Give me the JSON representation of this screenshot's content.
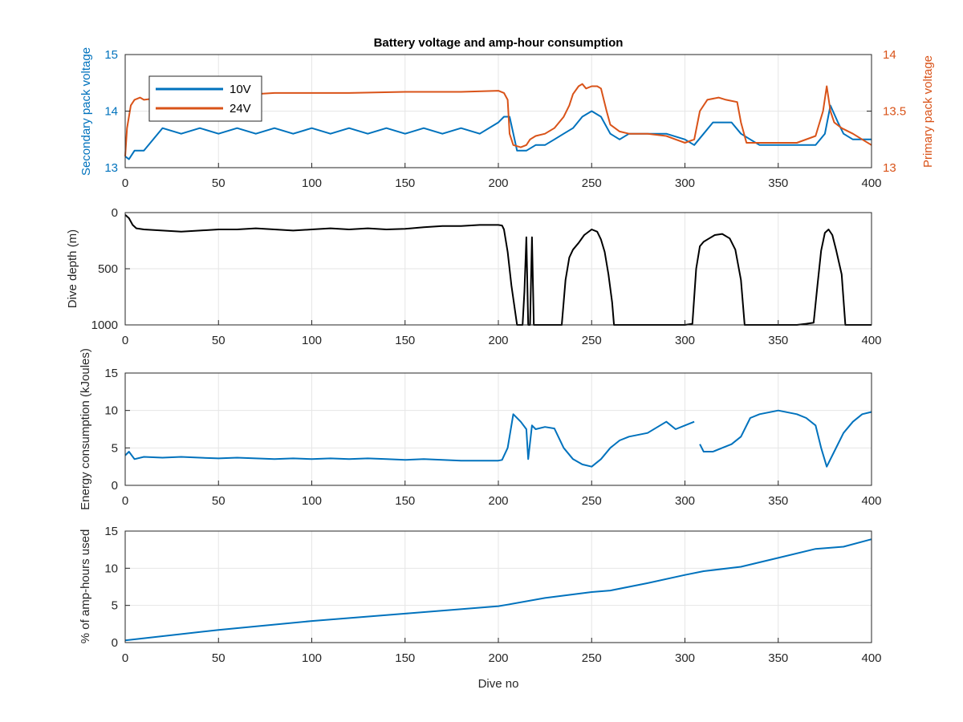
{
  "chart_data": [
    {
      "type": "line",
      "title": "Battery voltage and amp-hour consumption",
      "xlabel": "",
      "ylabel": "Secondary pack voltage",
      "ylabel_right": "Primary pack voltage",
      "xlim": [
        0,
        400
      ],
      "ylim": [
        13,
        15
      ],
      "ylim_right": [
        13,
        14
      ],
      "xticks": [
        0,
        50,
        100,
        150,
        200,
        250,
        300,
        350,
        400
      ],
      "yticks": [
        13,
        14,
        15
      ],
      "yticks_right": [
        13,
        13.5,
        14
      ],
      "grid": true,
      "legend": "top-left",
      "series": [
        {
          "name": "10V",
          "axis": "left",
          "color": "#0072BD",
          "x": [
            0,
            2,
            5,
            10,
            20,
            30,
            40,
            50,
            60,
            70,
            80,
            90,
            100,
            110,
            120,
            130,
            140,
            150,
            160,
            170,
            180,
            190,
            200,
            203,
            206,
            210,
            215,
            220,
            225,
            230,
            235,
            240,
            245,
            250,
            255,
            260,
            265,
            270,
            280,
            290,
            300,
            305,
            310,
            315,
            320,
            325,
            330,
            335,
            340,
            350,
            360,
            370,
            375,
            378,
            382,
            385,
            390,
            400
          ],
          "y": [
            13.2,
            13.15,
            13.3,
            13.3,
            13.7,
            13.6,
            13.7,
            13.6,
            13.7,
            13.6,
            13.7,
            13.6,
            13.7,
            13.6,
            13.7,
            13.6,
            13.7,
            13.6,
            13.7,
            13.6,
            13.7,
            13.6,
            13.8,
            13.9,
            13.9,
            13.3,
            13.3,
            13.4,
            13.4,
            13.5,
            13.6,
            13.7,
            13.9,
            14.0,
            13.9,
            13.6,
            13.5,
            13.6,
            13.6,
            13.6,
            13.5,
            13.4,
            13.6,
            13.8,
            13.8,
            13.8,
            13.6,
            13.5,
            13.4,
            13.4,
            13.4,
            13.4,
            13.6,
            14.1,
            13.8,
            13.6,
            13.5,
            13.5
          ]
        },
        {
          "name": "24V",
          "axis": "right",
          "color": "#D95319",
          "x": [
            0,
            1,
            3,
            5,
            8,
            10,
            20,
            30,
            40,
            50,
            60,
            70,
            80,
            100,
            120,
            150,
            180,
            200,
            203,
            205,
            206,
            208,
            212,
            215,
            217,
            220,
            225,
            230,
            235,
            238,
            240,
            243,
            245,
            247,
            250,
            253,
            255,
            258,
            260,
            265,
            270,
            280,
            290,
            295,
            300,
            305,
            308,
            312,
            318,
            322,
            328,
            330,
            333,
            340,
            350,
            360,
            370,
            374,
            376,
            378,
            380,
            384,
            390,
            395,
            400
          ],
          "y": [
            13.1,
            13.35,
            13.55,
            13.6,
            13.62,
            13.6,
            13.62,
            13.63,
            13.63,
            13.64,
            13.65,
            13.65,
            13.66,
            13.66,
            13.66,
            13.67,
            13.67,
            13.68,
            13.66,
            13.6,
            13.3,
            13.2,
            13.18,
            13.2,
            13.25,
            13.28,
            13.3,
            13.35,
            13.45,
            13.55,
            13.65,
            13.72,
            13.74,
            13.7,
            13.72,
            13.72,
            13.7,
            13.5,
            13.38,
            13.32,
            13.3,
            13.3,
            13.28,
            13.25,
            13.22,
            13.25,
            13.5,
            13.6,
            13.62,
            13.6,
            13.58,
            13.4,
            13.22,
            13.22,
            13.22,
            13.22,
            13.28,
            13.5,
            13.72,
            13.5,
            13.4,
            13.35,
            13.3,
            13.25,
            13.2
          ]
        }
      ]
    },
    {
      "type": "line",
      "title": "",
      "xlabel": "",
      "ylabel": "Dive depth (m)",
      "y_reversed": true,
      "xlim": [
        0,
        400
      ],
      "ylim": [
        0,
        1000
      ],
      "xticks": [
        0,
        50,
        100,
        150,
        200,
        250,
        300,
        350,
        400
      ],
      "yticks": [
        0,
        500,
        1000
      ],
      "grid": true,
      "series": [
        {
          "color": "#000000",
          "x": [
            0,
            2,
            4,
            6,
            10,
            20,
            30,
            40,
            50,
            60,
            70,
            80,
            90,
            100,
            110,
            120,
            130,
            140,
            150,
            160,
            170,
            180,
            190,
            200,
            202,
            203,
            205,
            207,
            210,
            213,
            214,
            215,
            216,
            217,
            218,
            219,
            220,
            225,
            230,
            234,
            236,
            238,
            240,
            243,
            246,
            250,
            253,
            255,
            257,
            259,
            261,
            262,
            270,
            290,
            300,
            304,
            306,
            308,
            310,
            313,
            316,
            320,
            324,
            327,
            330,
            332,
            334,
            340,
            350,
            360,
            365,
            369,
            371,
            373,
            375,
            377,
            379,
            381,
            384,
            386,
            390,
            400
          ],
          "y": [
            20,
            50,
            110,
            140,
            150,
            160,
            170,
            160,
            150,
            150,
            140,
            150,
            160,
            150,
            140,
            150,
            140,
            150,
            145,
            130,
            120,
            120,
            110,
            110,
            115,
            150,
            350,
            650,
            1000,
            1000,
            700,
            220,
            1000,
            1000,
            220,
            1000,
            1000,
            1000,
            1000,
            1000,
            600,
            400,
            330,
            270,
            200,
            150,
            170,
            240,
            350,
            550,
            800,
            1000,
            1000,
            1000,
            1000,
            990,
            500,
            300,
            260,
            230,
            200,
            190,
            230,
            330,
            600,
            1000,
            1000,
            1000,
            1000,
            1000,
            990,
            980,
            650,
            340,
            180,
            150,
            200,
            330,
            550,
            1000,
            1000,
            1000
          ]
        }
      ]
    },
    {
      "type": "line",
      "title": "",
      "xlabel": "",
      "ylabel": "Energy consumption (kJoules)",
      "xlim": [
        0,
        400
      ],
      "ylim": [
        0,
        15
      ],
      "xticks": [
        0,
        50,
        100,
        150,
        200,
        250,
        300,
        350,
        400
      ],
      "yticks": [
        0,
        5,
        10,
        15
      ],
      "grid": true,
      "series": [
        {
          "color": "#0072BD",
          "x": [
            0,
            2,
            5,
            10,
            20,
            30,
            40,
            50,
            60,
            70,
            80,
            90,
            100,
            110,
            120,
            130,
            140,
            150,
            160,
            170,
            180,
            190,
            200,
            202,
            205,
            208,
            212,
            215,
            216,
            218,
            220,
            225,
            230,
            235,
            240,
            245,
            250,
            255,
            260,
            265,
            270,
            280,
            290,
            295,
            300,
            305,
            null,
            308,
            310,
            315,
            320,
            325,
            330,
            335,
            340,
            350,
            360,
            365,
            370,
            373,
            376,
            380,
            385,
            390,
            395,
            400
          ],
          "y": [
            4.0,
            4.5,
            3.5,
            3.8,
            3.7,
            3.8,
            3.7,
            3.6,
            3.7,
            3.6,
            3.5,
            3.6,
            3.5,
            3.6,
            3.5,
            3.6,
            3.5,
            3.4,
            3.5,
            3.4,
            3.3,
            3.3,
            3.3,
            3.4,
            5.0,
            9.5,
            8.5,
            7.5,
            3.5,
            8.0,
            7.5,
            7.8,
            7.6,
            5.0,
            3.5,
            2.8,
            2.5,
            3.5,
            5.0,
            6.0,
            6.5,
            7.0,
            8.5,
            7.5,
            8.0,
            8.5,
            null,
            5.5,
            4.5,
            4.5,
            5.0,
            5.5,
            6.5,
            9.0,
            9.5,
            10.0,
            9.5,
            9.0,
            8.0,
            5.0,
            2.5,
            4.5,
            7.0,
            8.5,
            9.5,
            9.8
          ]
        }
      ]
    },
    {
      "type": "line",
      "title": "",
      "xlabel": "Dive no",
      "ylabel": "% of amp-hours used",
      "xlim": [
        0,
        400
      ],
      "ylim": [
        0,
        15
      ],
      "xticks": [
        0,
        50,
        100,
        150,
        200,
        250,
        300,
        350,
        400
      ],
      "yticks": [
        0,
        5,
        10,
        15
      ],
      "grid": true,
      "series": [
        {
          "color": "#0072BD",
          "x": [
            0,
            50,
            100,
            150,
            200,
            205,
            225,
            250,
            260,
            280,
            300,
            310,
            330,
            350,
            370,
            385,
            400
          ],
          "y": [
            0.3,
            1.7,
            2.9,
            3.9,
            4.9,
            5.1,
            6.0,
            6.8,
            7.0,
            8.0,
            9.1,
            9.6,
            10.2,
            11.4,
            12.6,
            12.9,
            13.9
          ]
        }
      ]
    }
  ]
}
